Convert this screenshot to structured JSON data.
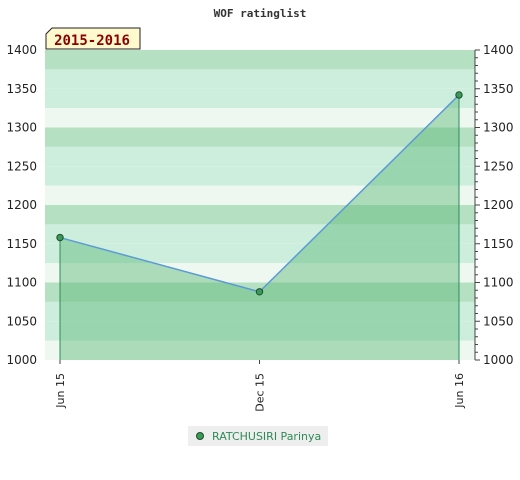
{
  "chart_data": {
    "type": "area",
    "title": "WOF ratinglist",
    "badge": "2015-2016",
    "categories": [
      "Jun 15",
      "Dec 15",
      "Jun 16"
    ],
    "series": [
      {
        "name": "RATCHUSIRI Parinya",
        "values": [
          1158,
          1088,
          1342
        ]
      }
    ],
    "ylim": [
      1000,
      1400
    ],
    "yticks": [
      1000,
      1050,
      1100,
      1150,
      1200,
      1250,
      1300,
      1350,
      1400
    ],
    "y_axis_both_sides": true,
    "legend_position": "bottom-center",
    "colors": {
      "band_dark": "#b6e0c2",
      "band_mid": "#cdeedc",
      "band_light": "#eef8f1",
      "area_fill": "#5ab878",
      "line": "#5b9bd5",
      "marker": "#3a9a5a",
      "badge_bg": "#fffacd"
    }
  }
}
